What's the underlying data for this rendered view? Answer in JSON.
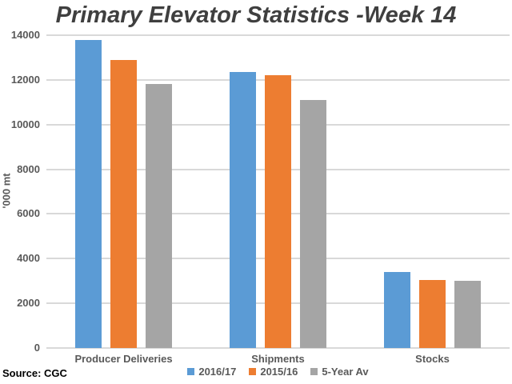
{
  "chart_data": {
    "type": "bar",
    "title": "Primary Elevator Statistics -Week 14",
    "categories": [
      "Producer Deliveries",
      "Shipments",
      "Stocks"
    ],
    "series": [
      {
        "name": "2016/17",
        "color": "#5B9BD5",
        "values": [
          13800,
          12350,
          3400
        ]
      },
      {
        "name": "2015/16",
        "color": "#ED7D31",
        "values": [
          12900,
          12200,
          3050
        ]
      },
      {
        "name": "5-Year Av",
        "color": "#A5A5A5",
        "values": [
          11800,
          11100,
          3000
        ]
      }
    ],
    "xlabel": "",
    "ylabel": "'000 mt",
    "ylim": [
      0,
      14000
    ],
    "ytick_step": 2000,
    "ytick_labels": [
      "0",
      "2000",
      "4000",
      "6000",
      "8000",
      "10000",
      "12000",
      "14000"
    ],
    "grid": true,
    "legend_position": "bottom"
  },
  "footer": {
    "source": "Source: CGC"
  },
  "colors": {
    "title_text": "#3F3F3F",
    "axis_text": "#595959",
    "gridline": "#D9D9D9",
    "background": "#FFFFFF"
  }
}
